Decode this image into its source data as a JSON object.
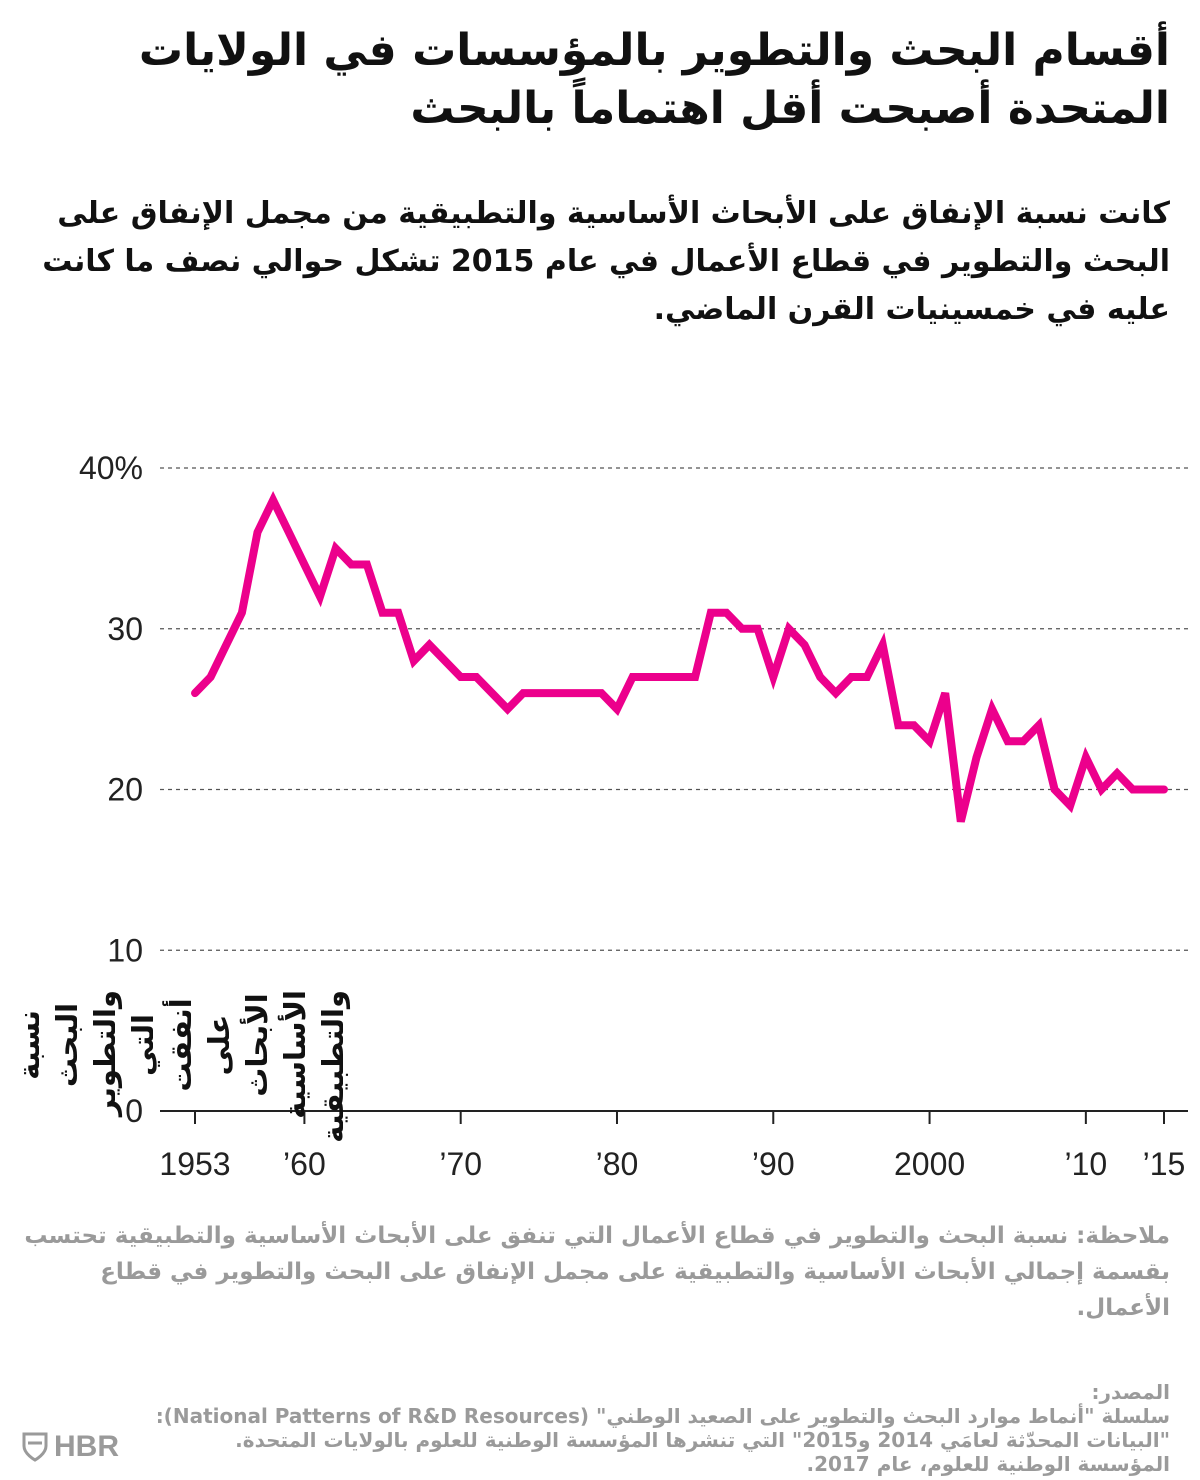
{
  "title": "أقسام البحث والتطوير بالمؤسسات في الولايات المتحدة أصبحت أقل اهتماماً بالبحث",
  "subtitle": "كانت نسبة الإنفاق على الأبحاث الأساسية والتطبيقية من مجمل الإنفاق على البحث والتطوير في قطاع الأعمال في عام 2015 تشكل حوالي نصف ما كانت عليه في خمسينيات القرن الماضي.",
  "note": "ملاحظة: نسبة البحث والتطوير في قطاع الأعمال التي تنفق على الأبحاث الأساسية والتطبيقية تحتسب بقسمة إجمالي الأبحاث الأساسية والتطبيقية على مجمل الإنفاق على البحث والتطوير في قطاع الأعمال.",
  "source": {
    "label": "المصدر:",
    "line1": "سلسلة \"أنماط موارد البحث والتطوير على الصعيد الوطني\" (National Patterns of R&D Resources):",
    "line2": "\"البيانات المحدّثة لعامَي 2014 و2015\" التي تنشرها المؤسسة الوطنية للعلوم بالولايات المتحدة.",
    "line3": "المؤسسة الوطنية للعلوم، عام 2017."
  },
  "logo": {
    "text": "HBR",
    "icon": "hbr-shield-icon"
  },
  "colors": {
    "line": "#ec008c",
    "grid": "#555555",
    "muted": "#9a9a9a",
    "text": "#111111"
  },
  "chart_data": {
    "type": "line",
    "ylabel": "نسبة البحث والتطوير التي أنفقت على الأبحاث الأساسية والتطبيقية",
    "xlabel": "",
    "ylim": [
      0,
      40
    ],
    "xlim": [
      1953,
      2015
    ],
    "y_ticks": [
      {
        "value": 0,
        "label": "0"
      },
      {
        "value": 10,
        "label": "10"
      },
      {
        "value": 20,
        "label": "20"
      },
      {
        "value": 30,
        "label": "30"
      },
      {
        "value": 40,
        "label": "40%"
      }
    ],
    "x_ticks": [
      {
        "value": 1953,
        "label": "1953"
      },
      {
        "value": 1960,
        "label": "’60"
      },
      {
        "value": 1970,
        "label": "’70"
      },
      {
        "value": 1980,
        "label": "’80"
      },
      {
        "value": 1990,
        "label": "’90"
      },
      {
        "value": 2000,
        "label": "2000"
      },
      {
        "value": 2010,
        "label": "’10"
      },
      {
        "value": 2015,
        "label": "’15"
      }
    ],
    "grid": true,
    "series": [
      {
        "x": [
          1953,
          1954,
          1955,
          1956,
          1957,
          1958,
          1959,
          1960,
          1961,
          1962,
          1963,
          1964,
          1965,
          1966,
          1967,
          1968,
          1969,
          1970,
          1971,
          1972,
          1973,
          1974,
          1975,
          1976,
          1977,
          1978,
          1979,
          1980,
          1981,
          1982,
          1983,
          1984,
          1985,
          1986,
          1987,
          1988,
          1989,
          1990,
          1991,
          1992,
          1993,
          1994,
          1995,
          1996,
          1997,
          1998,
          1999,
          2000,
          2001,
          2002,
          2003,
          2004,
          2005,
          2006,
          2007,
          2008,
          2009,
          2010,
          2011,
          2012,
          2013,
          2014,
          2015
        ],
        "values": [
          26,
          27,
          29,
          31,
          36,
          38,
          36,
          34,
          32,
          35,
          34,
          34,
          31,
          31,
          28,
          29,
          28,
          27,
          27,
          26,
          25,
          26,
          26,
          26,
          26,
          26,
          26,
          25,
          27,
          27,
          27,
          27,
          27,
          31,
          31,
          30,
          30,
          27,
          30,
          29,
          27,
          26,
          27,
          27,
          29,
          24,
          24,
          23,
          26,
          18,
          22,
          25,
          23,
          23,
          24,
          20,
          19,
          22,
          20,
          21,
          20,
          20,
          20
        ]
      }
    ]
  }
}
